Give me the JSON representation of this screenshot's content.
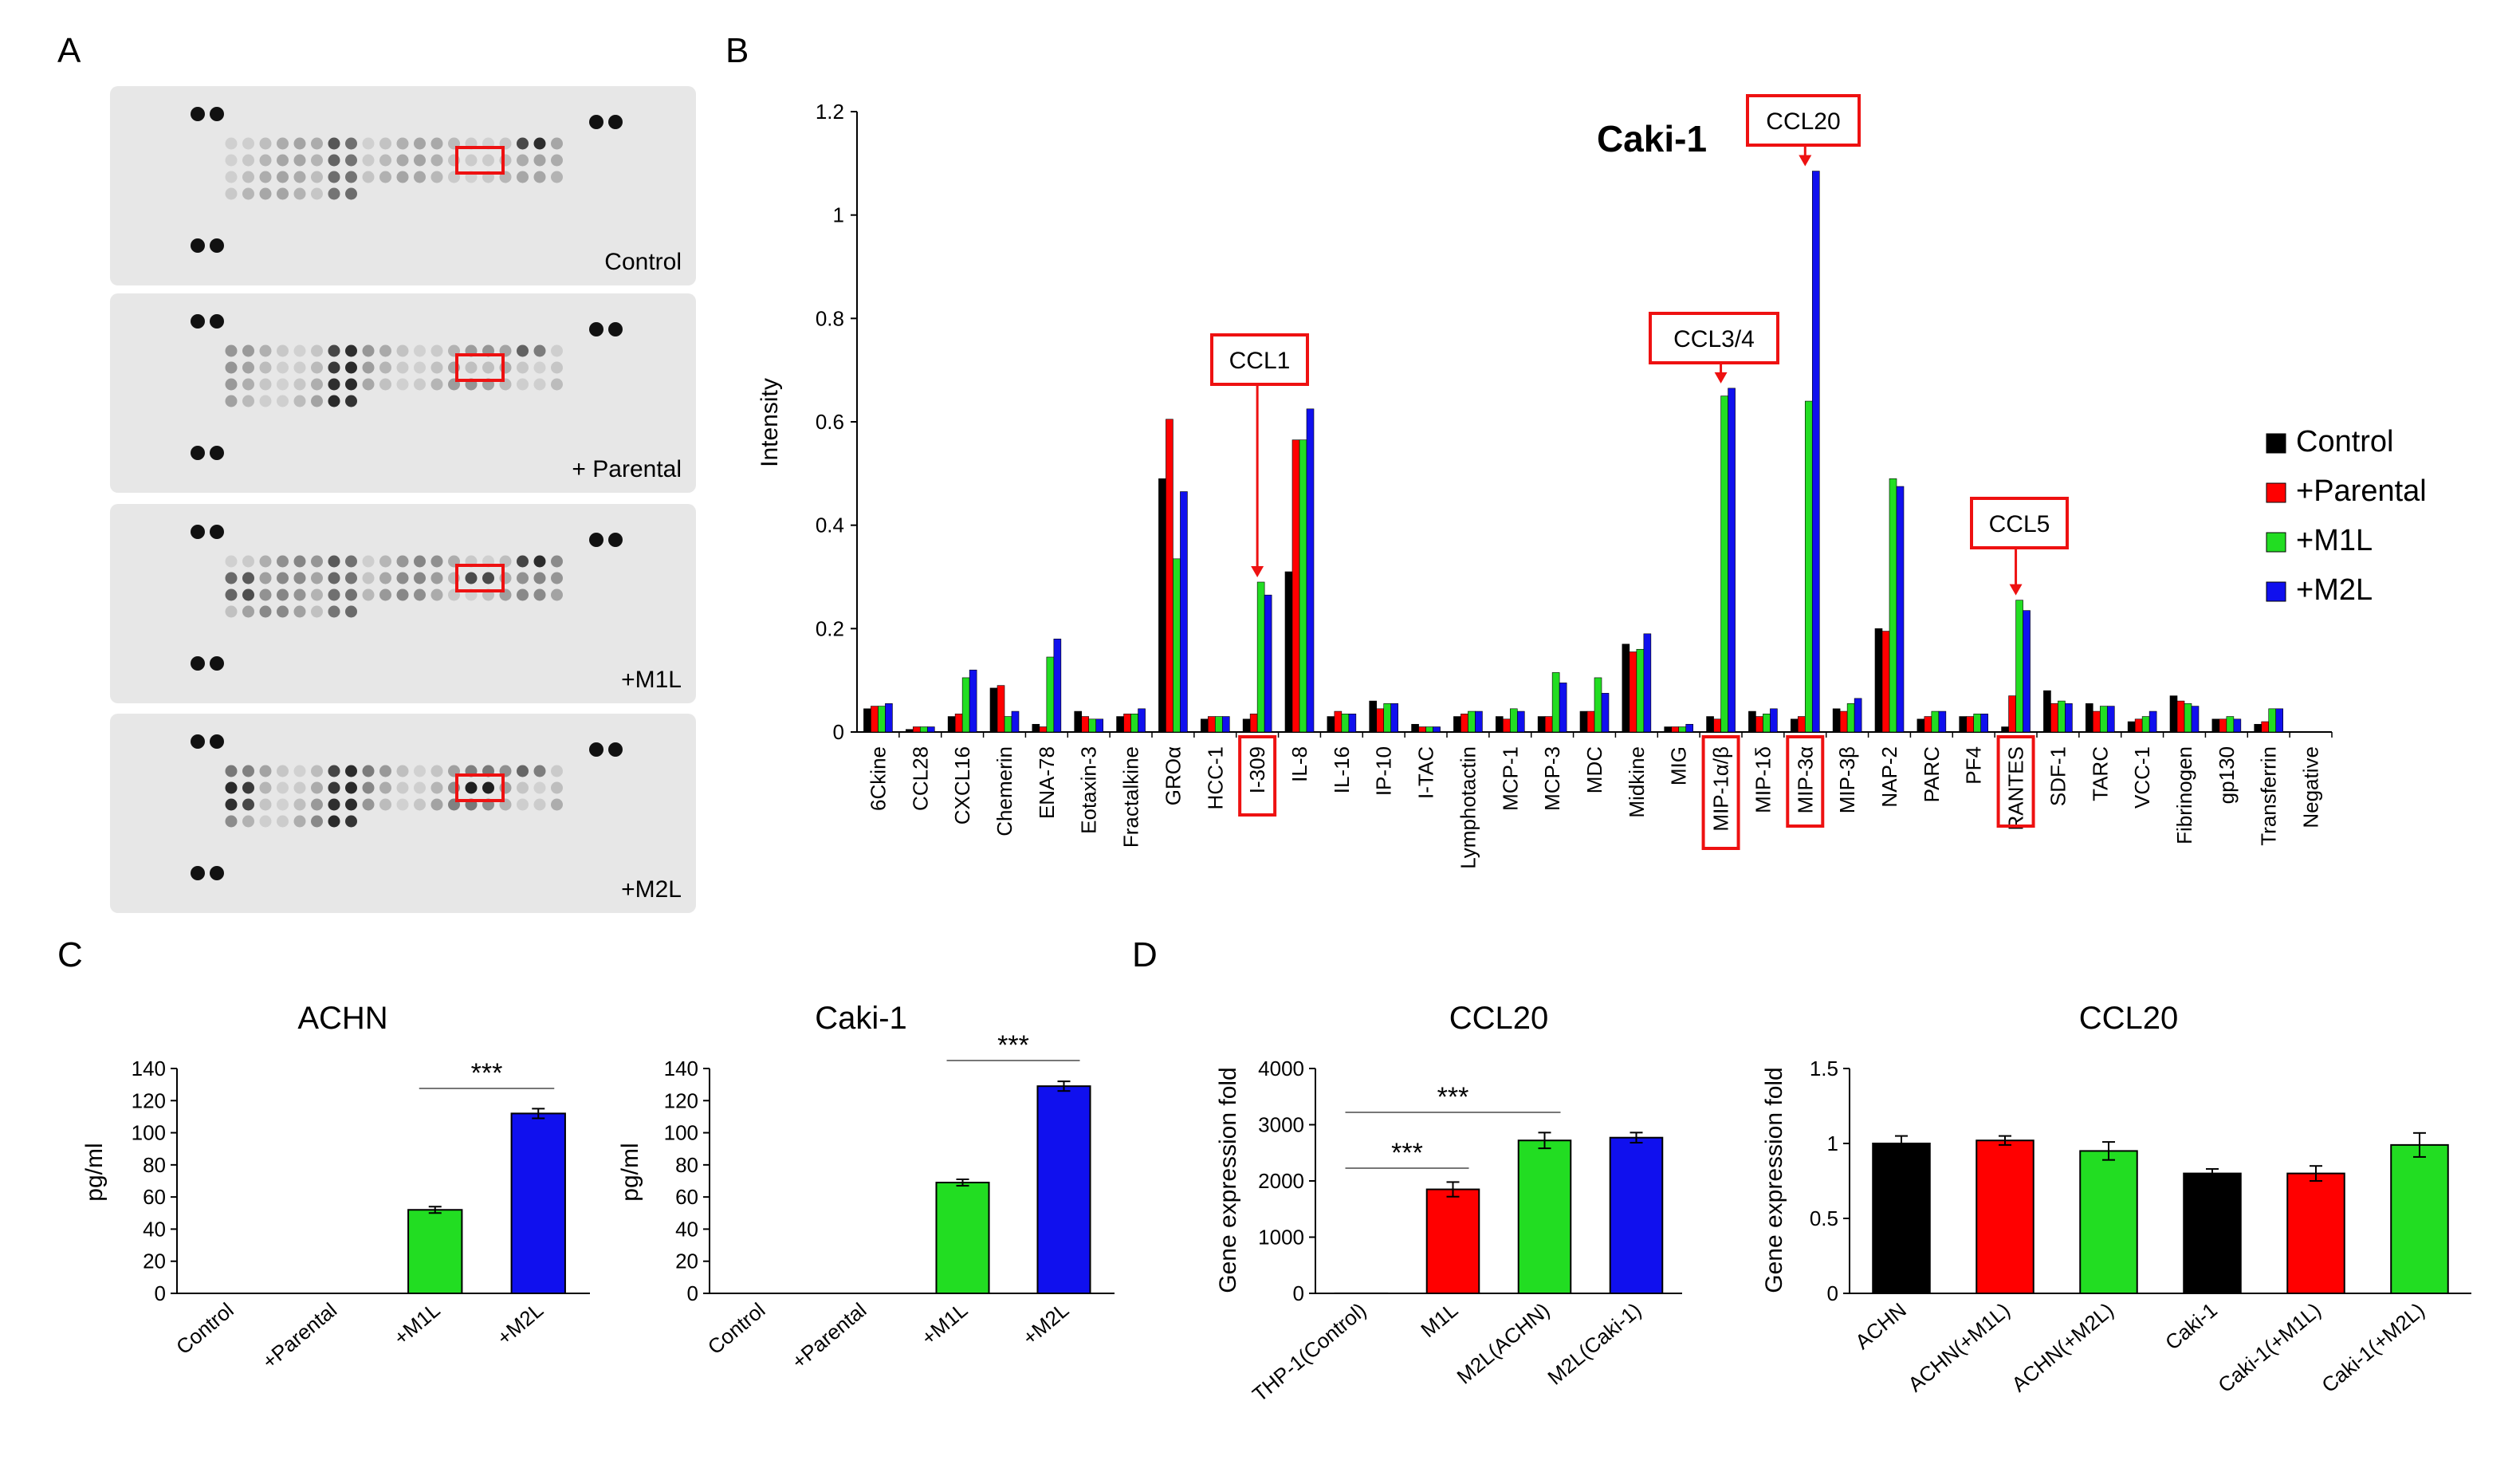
{
  "panels": {
    "a": "A",
    "b": "B",
    "c": "C",
    "d": "D"
  },
  "colors": {
    "control": "#000000",
    "parental": "#ff0000",
    "m1l": "#22dd22",
    "m2l": "#1010ee",
    "highlight": "#ee1111"
  },
  "blots": [
    {
      "label": "Control",
      "highlight_level": 0.15
    },
    {
      "label": "+ Parental",
      "highlight_level": 0.2
    },
    {
      "label": "+M1L",
      "highlight_level": 0.75
    },
    {
      "label": "+M2L",
      "highlight_level": 0.95
    }
  ],
  "chart_data": [
    {
      "type": "bar",
      "title": "Caki-1",
      "ylabel": "Intensity",
      "ylim": [
        0,
        1.2
      ],
      "yticks": [
        "0",
        "0.2",
        "0.4",
        "0.6",
        "0.8",
        "1",
        "1.2"
      ],
      "legend_position": "right",
      "categories": [
        "6Ckine",
        "CCL28",
        "CXCL16",
        "Chemerin",
        "ENA-78",
        "Eotaxin-3",
        "Fractalkine",
        "GROα",
        "HCC-1",
        "I-309",
        "IL-8",
        "IL-16",
        "IP-10",
        "I-TAC",
        "Lymphotactin",
        "MCP-1",
        "MCP-3",
        "MDC",
        "Midkine",
        "MIG",
        "MIP-1α/β",
        "MIP-1δ",
        "MIP-3α",
        "MIP-3β",
        "NAP-2",
        "PARC",
        "PF4",
        "RANTES",
        "SDF-1",
        "TARC",
        "VCC-1",
        "Fibrinogen",
        "gp130",
        "Transferrin",
        "Negative"
      ],
      "boxed_categories": [
        "I-309",
        "MIP-1α/β",
        "MIP-3α",
        "RANTES"
      ],
      "series": [
        {
          "name": "Control",
          "values": [
            0.045,
            0.005,
            0.03,
            0.085,
            0.015,
            0.04,
            0.03,
            0.49,
            0.025,
            0.025,
            0.31,
            0.03,
            0.06,
            0.015,
            0.03,
            0.03,
            0.03,
            0.04,
            0.17,
            0.01,
            0.03,
            0.04,
            0.025,
            0.045,
            0.2,
            0.025,
            0.03,
            0.01,
            0.08,
            0.055,
            0.02,
            0.07,
            0.025,
            0.015,
            0
          ]
        },
        {
          "name": "+Parental",
          "values": [
            0.05,
            0.01,
            0.035,
            0.09,
            0.01,
            0.03,
            0.035,
            0.605,
            0.03,
            0.035,
            0.565,
            0.04,
            0.045,
            0.01,
            0.035,
            0.025,
            0.03,
            0.04,
            0.155,
            0.01,
            0.025,
            0.03,
            0.03,
            0.04,
            0.195,
            0.03,
            0.03,
            0.07,
            0.055,
            0.04,
            0.025,
            0.06,
            0.025,
            0.02,
            0
          ]
        },
        {
          "name": "+M1L",
          "values": [
            0.05,
            0.01,
            0.105,
            0.03,
            0.145,
            0.025,
            0.035,
            0.335,
            0.03,
            0.29,
            0.565,
            0.035,
            0.055,
            0.01,
            0.04,
            0.045,
            0.115,
            0.105,
            0.16,
            0.01,
            0.65,
            0.035,
            0.64,
            0.055,
            0.49,
            0.04,
            0.035,
            0.255,
            0.06,
            0.05,
            0.03,
            0.055,
            0.03,
            0.045,
            0
          ]
        },
        {
          "name": "+M2L",
          "values": [
            0.055,
            0.01,
            0.12,
            0.04,
            0.18,
            0.025,
            0.045,
            0.465,
            0.03,
            0.265,
            0.625,
            0.035,
            0.055,
            0.01,
            0.04,
            0.04,
            0.095,
            0.075,
            0.19,
            0.015,
            0.665,
            0.045,
            1.085,
            0.065,
            0.475,
            0.04,
            0.035,
            0.235,
            0.055,
            0.05,
            0.04,
            0.05,
            0.025,
            0.045,
            0
          ]
        }
      ],
      "annotations": [
        {
          "text": "CCL1",
          "category": "I-309",
          "value": 0.29
        },
        {
          "text": "CCL3/4",
          "category": "MIP-1α/β",
          "value": 0.665
        },
        {
          "text": "CCL20",
          "category": "MIP-3α",
          "value": 1.085
        },
        {
          "text": "CCL5",
          "category": "RANTES",
          "value": 0.255
        }
      ]
    },
    {
      "type": "bar",
      "title": "ACHN",
      "ylabel": "pg/ml",
      "ylim": [
        0,
        140
      ],
      "yticks": [
        "0",
        "20",
        "40",
        "60",
        "80",
        "100",
        "120",
        "140"
      ],
      "categories": [
        "Control",
        "+Parental",
        "+M1L",
        "+M2L"
      ],
      "values": [
        0,
        0,
        52,
        112
      ],
      "errors": [
        0,
        0,
        2,
        3
      ],
      "significance": {
        "text": "***",
        "between": [
          "+M1L",
          "+M2L"
        ]
      }
    },
    {
      "type": "bar",
      "title": "Caki-1",
      "ylabel": "pg/ml",
      "ylim": [
        0,
        140
      ],
      "yticks": [
        "0",
        "20",
        "40",
        "60",
        "80",
        "100",
        "120",
        "140"
      ],
      "categories": [
        "Control",
        "+Parental",
        "+M1L",
        "+M2L"
      ],
      "values": [
        0,
        0,
        69,
        129
      ],
      "errors": [
        0,
        0,
        2,
        3
      ],
      "significance": {
        "text": "***",
        "between": [
          "+M1L",
          "+M2L"
        ]
      }
    },
    {
      "type": "bar",
      "title": "CCL20",
      "ylabel": "Gene expression fold",
      "ylim": [
        0,
        4000
      ],
      "yticks": [
        "0",
        "1000",
        "2000",
        "3000",
        "4000"
      ],
      "categories": [
        "THP-1(Control)",
        "M1L",
        "M2L(ACHN)",
        "M2L(Caki-1)"
      ],
      "values": [
        1,
        1850,
        2720,
        2770
      ],
      "errors": [
        0,
        130,
        140,
        90
      ],
      "significance": [
        {
          "text": "***",
          "between": [
            "THP-1(Control)",
            "M1L"
          ]
        },
        {
          "text": "***",
          "between": [
            "THP-1(Control)",
            "M2L(ACHN)"
          ]
        }
      ]
    },
    {
      "type": "bar",
      "title": "CCL20",
      "ylabel": "Gene expression fold",
      "ylim": [
        0,
        1.5
      ],
      "yticks": [
        "0",
        "0.5",
        "1",
        "1.5"
      ],
      "categories": [
        "ACHN",
        "ACHN(+M1L)",
        "ACHN(+M2L)",
        "Caki-1",
        "Caki-1(+M1L)",
        "Caki-1(+M2L)"
      ],
      "values": [
        1.0,
        1.02,
        0.95,
        0.8,
        0.8,
        0.99
      ],
      "errors": [
        0.05,
        0.03,
        0.06,
        0.03,
        0.05,
        0.08
      ]
    }
  ]
}
